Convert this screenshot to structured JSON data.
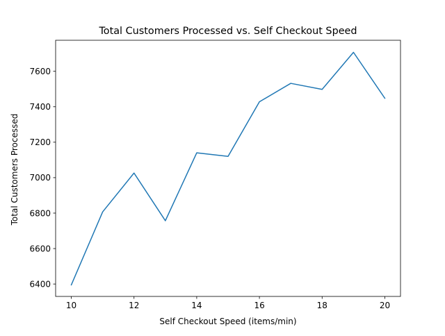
{
  "chart_data": {
    "type": "line",
    "title": "Total Customers Processed vs. Self Checkout Speed",
    "xlabel": "Self Checkout Speed (items/min)",
    "ylabel": "Total Customers Processed",
    "xlim": [
      9.5,
      20.5
    ],
    "ylim": [
      6330,
      7775
    ],
    "x_ticks": [
      10,
      12,
      14,
      16,
      18,
      20
    ],
    "y_ticks": [
      6400,
      6600,
      6800,
      7000,
      7200,
      7400,
      7600
    ],
    "grid": false,
    "series": [
      {
        "color": "#1f77b4",
        "x": [
          10,
          11,
          12,
          13,
          14,
          15,
          16,
          17,
          18,
          19,
          20
        ],
        "y": [
          6395,
          6807,
          7026,
          6757,
          7140,
          7120,
          7428,
          7532,
          7498,
          7707,
          7448
        ]
      }
    ]
  }
}
